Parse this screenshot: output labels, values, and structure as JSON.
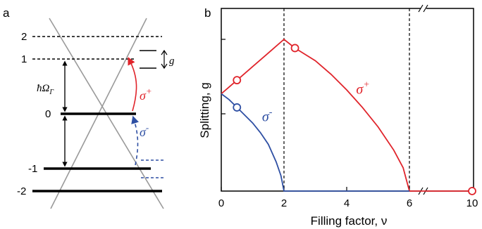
{
  "panel_a": {
    "label": "a",
    "levels": [
      {
        "label": "2",
        "style": "dashed"
      },
      {
        "label": "1",
        "style": "dashed"
      },
      {
        "label": "0",
        "style": "solid"
      },
      {
        "label": "-1",
        "style": "solid"
      },
      {
        "label": "-2",
        "style": "solid"
      }
    ],
    "gap_symbol": "g",
    "energy_symbol": "ħΩ",
    "energy_subscript": "Γ",
    "sigma_plus": "σ",
    "sigma_plus_sup": "+",
    "sigma_minus": "σ",
    "sigma_minus_sup": "-",
    "colors": {
      "sigma_plus": "#e0242b",
      "sigma_minus": "#2e4fa3",
      "cone": "#9a9a9a"
    }
  },
  "chart_data": {
    "type": "line",
    "label": "b",
    "xlabel": "Filling factor, ν",
    "ylabel": "Splitting, g",
    "xticks": [
      "0",
      "2",
      "4",
      "6",
      "10"
    ],
    "xlim_display": [
      0,
      10
    ],
    "axis_break_at": 7,
    "dashed_verticals": [
      2,
      6
    ],
    "series": [
      {
        "name": "σ+",
        "color": "#e0242b",
        "x": [
          0,
          0.5,
          1,
          1.5,
          2,
          2.35,
          2.5,
          3,
          3.5,
          4,
          4.5,
          5,
          5.5,
          5.8,
          6,
          8,
          10
        ],
        "y": [
          0.5,
          0.57,
          0.64,
          0.71,
          0.78,
          0.735,
          0.72,
          0.67,
          0.6,
          0.52,
          0.43,
          0.33,
          0.21,
          0.12,
          0.0,
          0.0,
          0.0
        ]
      },
      {
        "name": "σ-",
        "color": "#2e4fa3",
        "x": [
          0,
          0.25,
          0.5,
          0.75,
          1,
          1.25,
          1.5,
          1.75,
          1.9,
          2,
          6
        ],
        "y": [
          0.5,
          0.47,
          0.43,
          0.39,
          0.35,
          0.3,
          0.24,
          0.15,
          0.08,
          0.0,
          0.0
        ]
      }
    ],
    "markers": [
      {
        "series": "σ+",
        "x": 0.5,
        "y": 0.57
      },
      {
        "series": "σ+",
        "x": 2.35,
        "y": 0.735
      },
      {
        "series": "σ-",
        "x": 0.5,
        "y": 0.43
      },
      {
        "series": "σ+",
        "x": 10,
        "y": 0.0
      }
    ],
    "annotations": [
      {
        "text": "σ",
        "sup": "+",
        "color": "#e0242b",
        "x": 4.3,
        "y": 0.5
      },
      {
        "text": "σ",
        "sup": "-",
        "color": "#2e4fa3",
        "x": 1.3,
        "y": 0.36
      }
    ]
  }
}
